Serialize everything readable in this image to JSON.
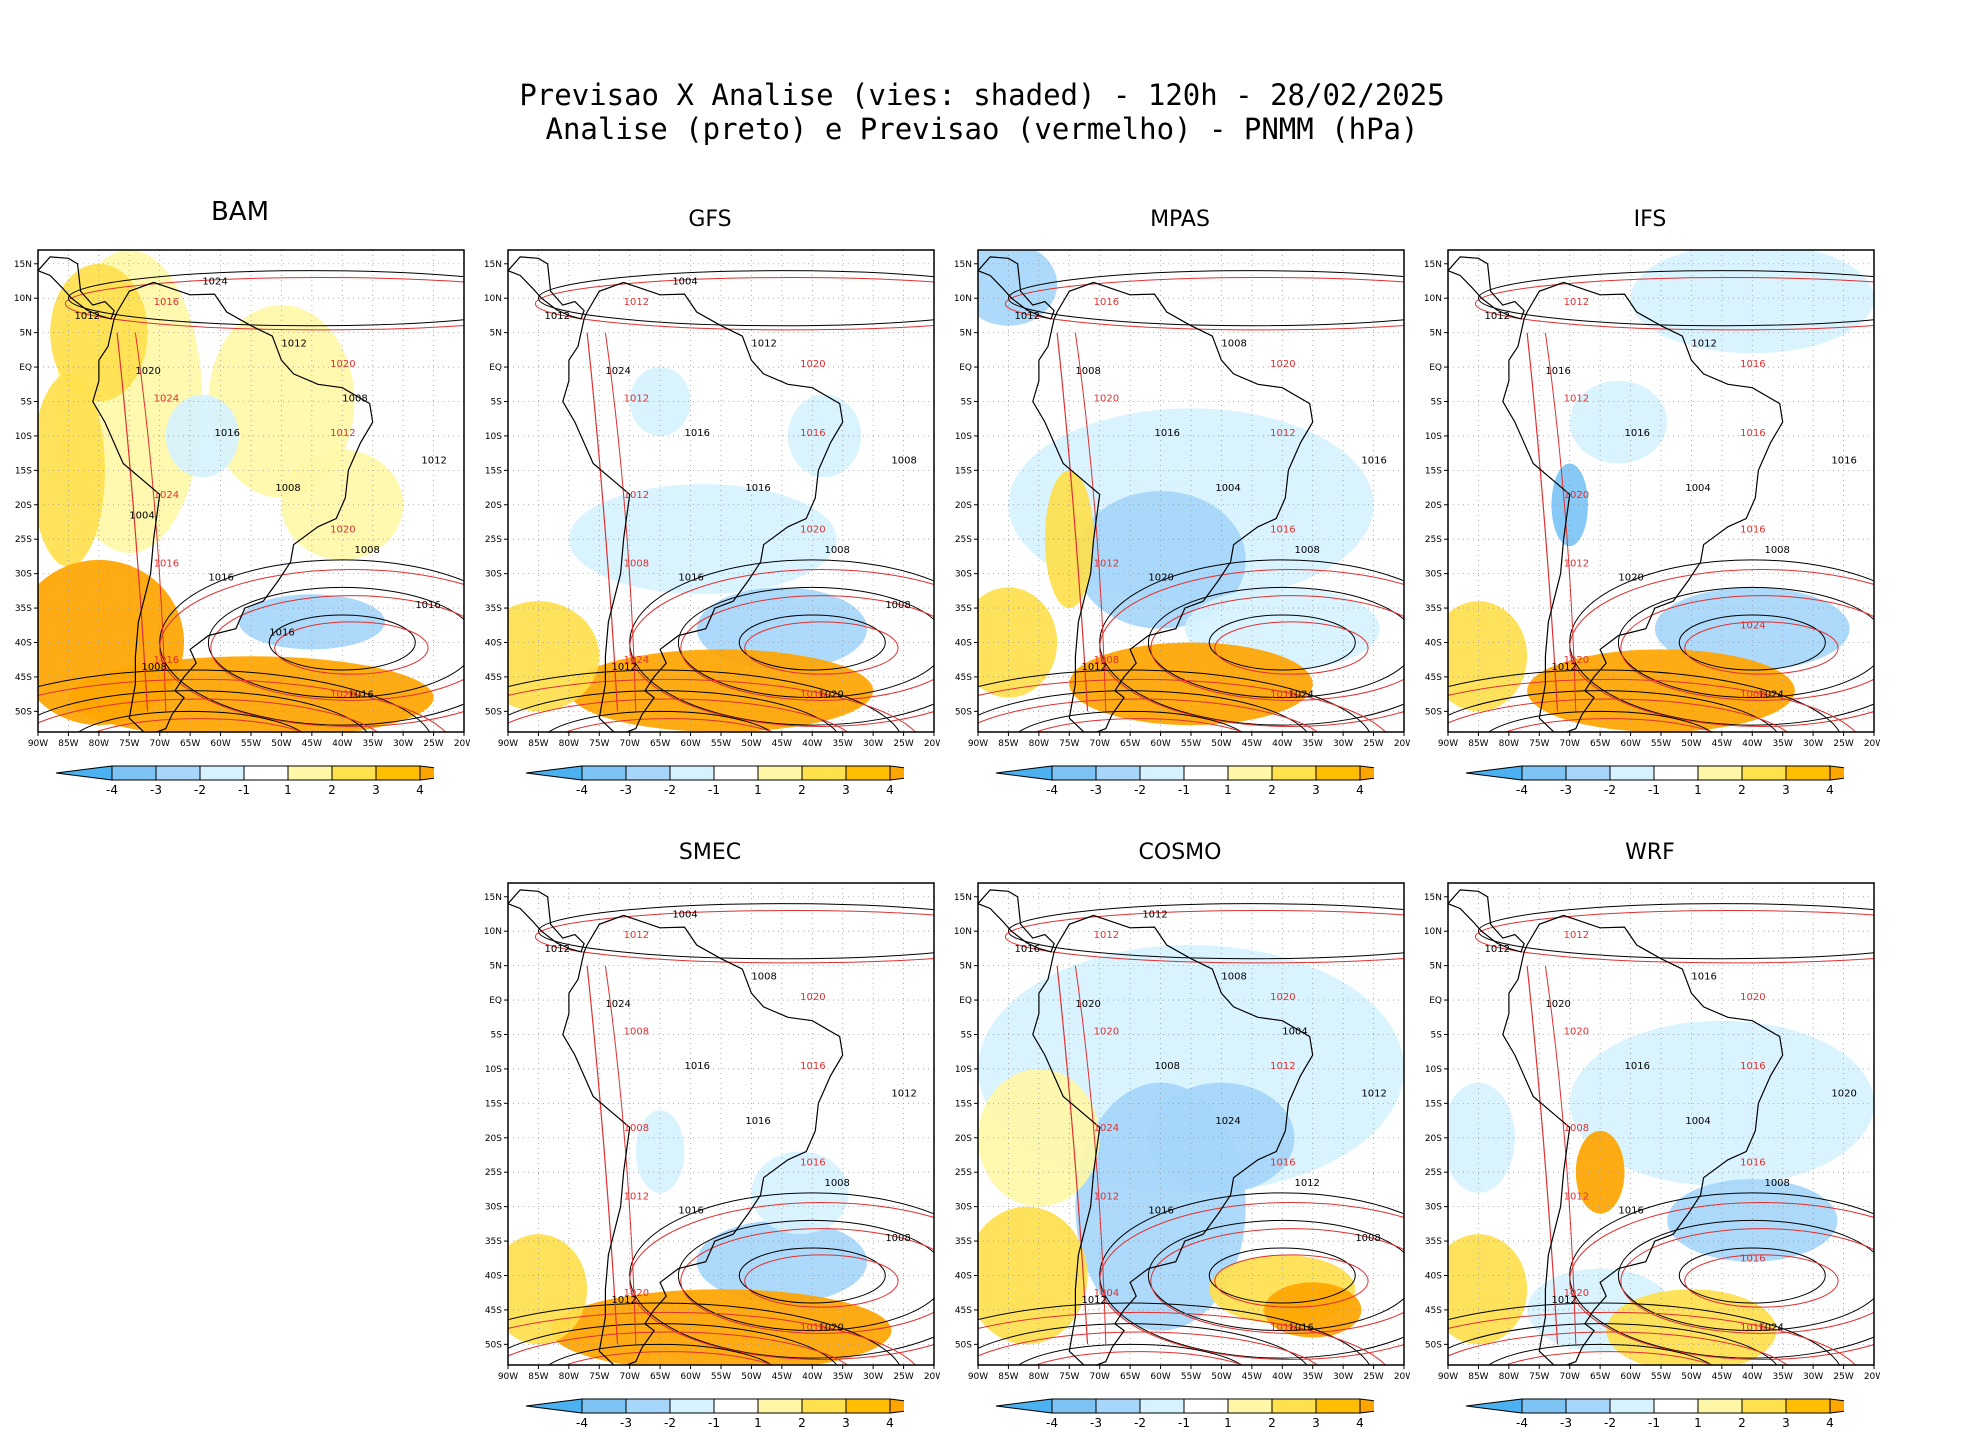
{
  "title": {
    "line1": "Previsao X Analise (vies: shaded) - 120h - 28/02/2025",
    "line2": "Analise (preto) e Previsao (vermelho) - PNMM (hPa)"
  },
  "lat_labels": [
    "15N",
    "10N",
    "5N",
    "EQ",
    "5S",
    "10S",
    "15S",
    "20S",
    "25S",
    "30S",
    "35S",
    "40S",
    "45S",
    "50S"
  ],
  "lon_labels": [
    "90W",
    "85W",
    "80W",
    "75W",
    "70W",
    "65W",
    "60W",
    "55W",
    "50W",
    "45W",
    "40W",
    "35W",
    "30W",
    "25W",
    "20W"
  ],
  "colorbar": {
    "labels": [
      "-4",
      "-3",
      "-2",
      "-1",
      "1",
      "2",
      "3",
      "4"
    ],
    "colors": [
      "#4cb1f0",
      "#7dc4f5",
      "#a6d6fa",
      "#d6f2ff",
      "#ffffff",
      "#fff7a8",
      "#ffe04d",
      "#ffbf00",
      "#ffa500"
    ]
  },
  "colors": {
    "analysis": "#000000",
    "forecast": "#e03030",
    "neg1": "#d6f2ff",
    "neg2": "#a6d6fa",
    "neg3": "#7dc4f5",
    "pos1": "#fff7a8",
    "pos2": "#ffe04d",
    "pos3": "#ffa500"
  },
  "panels": [
    {
      "name": "BAM",
      "black_labels": [
        "1012",
        "1016",
        "1008",
        "1008",
        "1012",
        "1012",
        "1016",
        "1016",
        "1020",
        "1008",
        "1016",
        "1024",
        "1008",
        "1004",
        "1016"
      ],
      "red_labels": [
        "1016",
        "1012",
        "1016",
        "1020",
        "1024",
        "1020",
        "1016",
        "1020",
        "1024"
      ]
    },
    {
      "name": "GFS",
      "black_labels": [
        "1012",
        "1016",
        "1008",
        "1012",
        "1012",
        "1008",
        "1016",
        "1020",
        "1024",
        "1016",
        "1008",
        "1004"
      ],
      "red_labels": [
        "1012",
        "1016",
        "1008",
        "1016",
        "1012",
        "1020",
        "1024",
        "1020",
        "1012"
      ]
    },
    {
      "name": "MPAS",
      "black_labels": [
        "1012",
        "1016",
        "1008",
        "1012",
        "1008",
        "1016",
        "1020",
        "1024",
        "1008",
        "1004"
      ],
      "red_labels": [
        "1016",
        "1012",
        "1012",
        "1016",
        "1020",
        "1016",
        "1008",
        "1020"
      ]
    },
    {
      "name": "IFS",
      "black_labels": [
        "1012",
        "1016",
        "1008",
        "1012",
        "1012",
        "1016",
        "1020",
        "1024",
        "1016",
        "1004"
      ],
      "red_labels": [
        "1012",
        "1016",
        "1012",
        "1008",
        "1012",
        "1016",
        "1020",
        "1016",
        "1020",
        "1024"
      ]
    },
    {
      "name": "SMEC",
      "black_labels": [
        "1012",
        "1016",
        "1008",
        "1012",
        "1008",
        "1012",
        "1016",
        "1020",
        "1024",
        "1016",
        "1008",
        "1004"
      ],
      "red_labels": [
        "1012",
        "1016",
        "1012",
        "1016",
        "1008",
        "1016",
        "1020",
        "1020",
        "1008"
      ]
    },
    {
      "name": "COSMO",
      "black_labels": [
        "1016",
        "1008",
        "1012",
        "1012",
        "1008",
        "1012",
        "1016",
        "1016",
        "1020",
        "1024",
        "1008",
        "1012",
        "1004"
      ],
      "red_labels": [
        "1012",
        "1012",
        "1012",
        "1016",
        "1020",
        "1016",
        "1004",
        "1020",
        "1024"
      ]
    },
    {
      "name": "WRF",
      "black_labels": [
        "1012",
        "1016",
        "1008",
        "1012",
        "1016",
        "1020",
        "1016",
        "1024",
        "1020",
        "1004"
      ],
      "red_labels": [
        "1012",
        "1016",
        "1012",
        "1016",
        "1020",
        "1016",
        "1020",
        "1020",
        "1008",
        "1016"
      ]
    }
  ]
}
